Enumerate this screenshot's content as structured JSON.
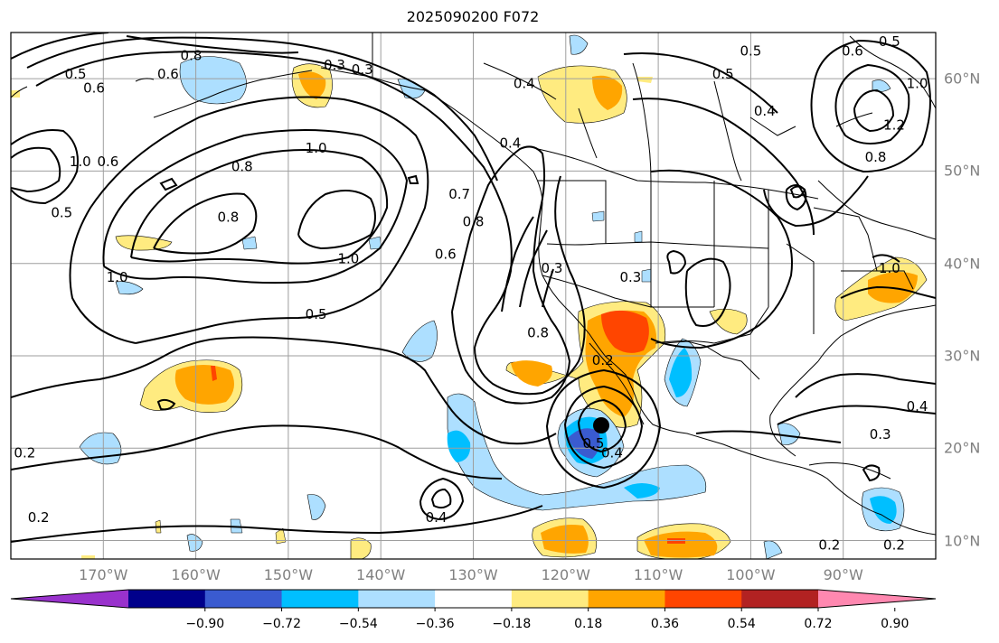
{
  "title": "2025090200 F072",
  "lat_ticks": [
    {
      "value": 60,
      "label": "60°N"
    },
    {
      "value": 50,
      "label": "50°N"
    },
    {
      "value": 40,
      "label": "40°N"
    },
    {
      "value": 30,
      "label": "30°N"
    },
    {
      "value": 20,
      "label": "20°N"
    },
    {
      "value": 10,
      "label": "10°N"
    }
  ],
  "lon_ticks": [
    {
      "value": -170,
      "label": "170°W"
    },
    {
      "value": -160,
      "label": "160°W"
    },
    {
      "value": -150,
      "label": "150°W"
    },
    {
      "value": -140,
      "label": "140°W"
    },
    {
      "value": -130,
      "label": "130°W"
    },
    {
      "value": -120,
      "label": "120°W"
    },
    {
      "value": -110,
      "label": "110°W"
    },
    {
      "value": -100,
      "label": "100°W"
    },
    {
      "value": -90,
      "label": "90°W"
    }
  ],
  "colorbar": {
    "ticks": [
      "−0.90",
      "−0.72",
      "−0.54",
      "−0.36",
      "−0.18",
      "0.18",
      "0.36",
      "0.54",
      "0.72",
      "0.90"
    ],
    "colors": [
      "#9932CC",
      "#00008B",
      "#3A5BD0",
      "#00BFFF",
      "#ADDFFF",
      "#FFFFFF",
      "#FFEB80",
      "#FFA500",
      "#FF4500",
      "#B22222",
      "#FF88B0"
    ]
  },
  "contour_labels": [
    {
      "text": "0.5",
      "lon": -173,
      "lat": 60.5
    },
    {
      "text": "0.6",
      "lon": -171,
      "lat": 59
    },
    {
      "text": "0.8",
      "lon": -160.5,
      "lat": 62.5
    },
    {
      "text": "0.6",
      "lon": -163,
      "lat": 60.5
    },
    {
      "text": "0.3",
      "lon": -145,
      "lat": 61.5
    },
    {
      "text": "0.3",
      "lon": -142,
      "lat": 61
    },
    {
      "text": "0.4",
      "lon": -124.5,
      "lat": 59.5
    },
    {
      "text": "0.5",
      "lon": -100,
      "lat": 63
    },
    {
      "text": "0.5",
      "lon": -103,
      "lat": 60.5
    },
    {
      "text": "0.6",
      "lon": -89,
      "lat": 63
    },
    {
      "text": "0.5",
      "lon": -85,
      "lat": 64
    },
    {
      "text": "1.0",
      "lon": -82,
      "lat": 59.5
    },
    {
      "text": "0.4",
      "lon": -98.5,
      "lat": 56.5
    },
    {
      "text": "1.2",
      "lon": -84.5,
      "lat": 55
    },
    {
      "text": "0.8",
      "lon": -86.5,
      "lat": 51.5
    },
    {
      "text": "0.4",
      "lon": -126,
      "lat": 53
    },
    {
      "text": "1.0",
      "lon": -147,
      "lat": 52.5
    },
    {
      "text": "0.8",
      "lon": -155,
      "lat": 50.5
    },
    {
      "text": "0.7",
      "lon": -131.5,
      "lat": 47.5
    },
    {
      "text": "0.8",
      "lon": -130,
      "lat": 44.5
    },
    {
      "text": "0.8",
      "lon": -156.5,
      "lat": 45
    },
    {
      "text": "0.5",
      "lon": -174.5,
      "lat": 45.5
    },
    {
      "text": "0.6",
      "lon": -169.5,
      "lat": 51
    },
    {
      "text": "1.0",
      "lon": -172.5,
      "lat": 51
    },
    {
      "text": "1.0",
      "lon": -143.5,
      "lat": 40.5
    },
    {
      "text": "1.0",
      "lon": -168.5,
      "lat": 38.5
    },
    {
      "text": "0.6",
      "lon": -133,
      "lat": 41
    },
    {
      "text": "0.3",
      "lon": -121.5,
      "lat": 39.5
    },
    {
      "text": "0.3",
      "lon": -113,
      "lat": 38.5
    },
    {
      "text": "0.5",
      "lon": -147,
      "lat": 34.5
    },
    {
      "text": "0.8",
      "lon": -123,
      "lat": 32.5
    },
    {
      "text": "0.2",
      "lon": -116,
      "lat": 29.5
    },
    {
      "text": "1.0",
      "lon": -85,
      "lat": 39.5
    },
    {
      "text": "0.3",
      "lon": -86,
      "lat": 21.5
    },
    {
      "text": "0.4",
      "lon": -82,
      "lat": 24.5
    },
    {
      "text": "0.5",
      "lon": -117,
      "lat": 20.5
    },
    {
      "text": "0.4",
      "lon": -115,
      "lat": 19.5
    },
    {
      "text": "0.4",
      "lon": -134,
      "lat": 12.5
    },
    {
      "text": "0.2",
      "lon": -178.5,
      "lat": 19.5
    },
    {
      "text": "0.2",
      "lon": -177,
      "lat": 12.5
    },
    {
      "text": "0.2",
      "lon": -91.5,
      "lat": 9.5
    },
    {
      "text": "0.2",
      "lon": -84.5,
      "lat": 9.5
    }
  ]
}
